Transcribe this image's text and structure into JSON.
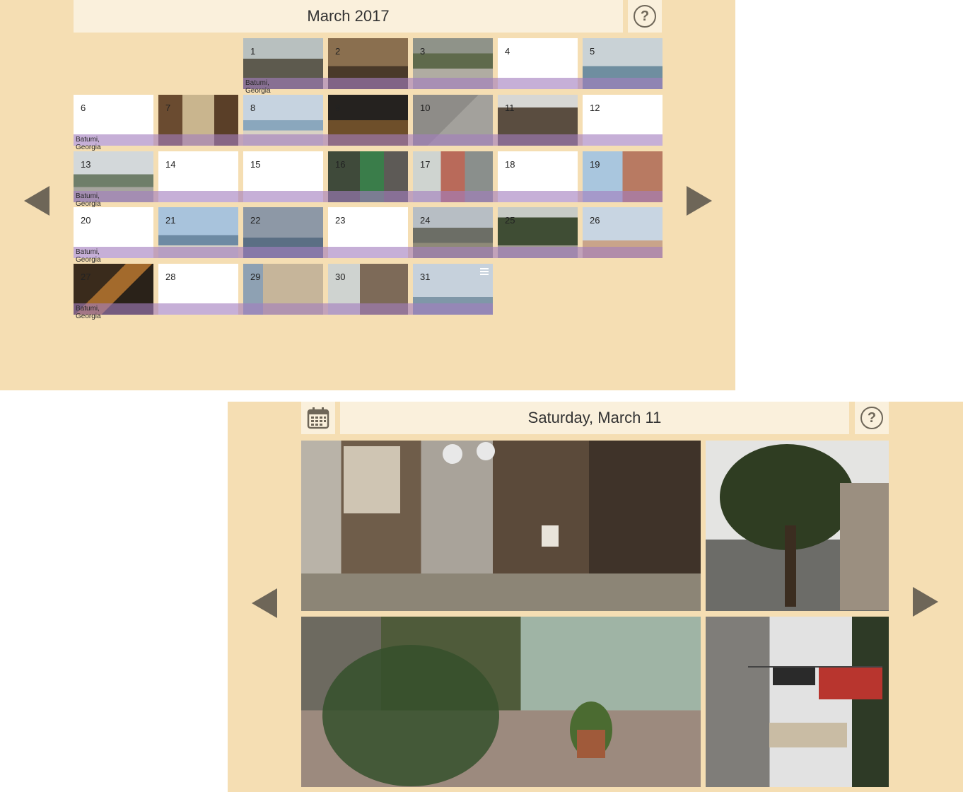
{
  "month_view": {
    "title": "March 2017",
    "help_label": "?",
    "weeks": [
      {
        "location": "Batumi, Georgia",
        "days": [
          {
            "label": "",
            "photo": null
          },
          {
            "label": "",
            "photo": null
          },
          {
            "label": "1",
            "photo": "cafe"
          },
          {
            "label": "2",
            "photo": "room"
          },
          {
            "label": "3",
            "photo": "path"
          },
          {
            "label": "4",
            "photo": null
          },
          {
            "label": "5",
            "photo": "sea-ship"
          }
        ]
      },
      {
        "location": "Batumi, Georgia",
        "days": [
          {
            "label": "6",
            "photo": null
          },
          {
            "label": "7",
            "photo": "interior"
          },
          {
            "label": "8",
            "photo": "beach"
          },
          {
            "label": "9",
            "photo": "night"
          },
          {
            "label": "10",
            "photo": "gravel"
          },
          {
            "label": "11",
            "photo": "old-house"
          },
          {
            "label": "12",
            "photo": null
          }
        ]
      },
      {
        "location": "Batumi, Georgia",
        "days": [
          {
            "label": "13",
            "photo": "street-car"
          },
          {
            "label": "14",
            "photo": null
          },
          {
            "label": "15",
            "photo": null
          },
          {
            "label": "16",
            "photo": "bottle"
          },
          {
            "label": "17",
            "photo": "person"
          },
          {
            "label": "18",
            "photo": null
          },
          {
            "label": "19",
            "photo": "building-blue"
          }
        ]
      },
      {
        "location": "Batumi, Georgia",
        "days": [
          {
            "label": "20",
            "photo": null
          },
          {
            "label": "21",
            "photo": "sky-sea"
          },
          {
            "label": "22",
            "photo": "cloudy-sea"
          },
          {
            "label": "23",
            "photo": null
          },
          {
            "label": "24",
            "photo": "mountains"
          },
          {
            "label": "25",
            "photo": "park"
          },
          {
            "label": "26",
            "photo": "church"
          }
        ]
      },
      {
        "location": "Batumi, Georgia",
        "days": [
          {
            "label": "27",
            "photo": "evening"
          },
          {
            "label": "28",
            "photo": null
          },
          {
            "label": "29",
            "photo": "facade"
          },
          {
            "label": "30",
            "photo": "balcony"
          },
          {
            "label": "31",
            "photo": "shore"
          }
        ]
      }
    ]
  },
  "day_view": {
    "title": "Saturday, March 11",
    "help_label": "?",
    "calendar_icon": "calendar-icon",
    "photos": [
      "old-houses",
      "tree-street",
      "garden-alley",
      "laundry-lines"
    ]
  },
  "colors": {
    "panel_bg": "#f5deb3",
    "title_bg": "#faf0dc",
    "week_band": "#a37ebe",
    "arrow": "#6e6658"
  },
  "icons": [
    "chevron-left-icon",
    "chevron-right-icon",
    "help-icon",
    "calendar-icon",
    "menu-icon"
  ]
}
